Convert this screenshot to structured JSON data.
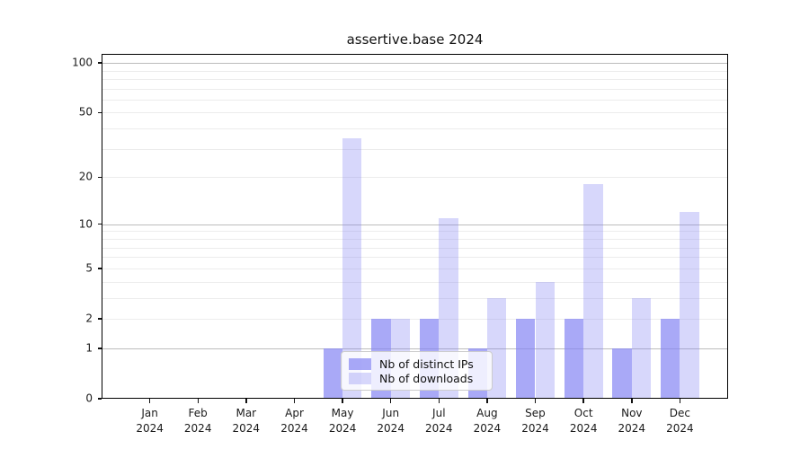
{
  "title": "assertive.base 2024",
  "chart_data": {
    "type": "bar",
    "title": "assertive.base 2024",
    "x_months": [
      "Jan",
      "Feb",
      "Mar",
      "Apr",
      "May",
      "Jun",
      "Jul",
      "Aug",
      "Sep",
      "Oct",
      "Nov",
      "Dec"
    ],
    "x_year": "2024",
    "series": [
      {
        "name": "Nb of distinct IPs",
        "color": "rgba(132,132,244,0.70)",
        "color_hex_on_white": "#a9a9f7",
        "values": [
          0,
          0,
          0,
          0,
          1,
          2,
          2,
          1,
          2,
          2,
          1,
          2
        ]
      },
      {
        "name": "Nb of downloads",
        "color": "rgba(132,132,244,0.32)",
        "color_hex_on_white": "#d8d8f8",
        "values": [
          0,
          0,
          0,
          0,
          35,
          2,
          11,
          3,
          4,
          18,
          3,
          12
        ]
      }
    ],
    "y_ticks": [
      0,
      1,
      2,
      5,
      10,
      20,
      50,
      100
    ],
    "y_scale": "log1p",
    "y_max_log": 2.058,
    "ylim": [
      0,
      113
    ],
    "grid": true,
    "grid_major_values": [
      1,
      10,
      100
    ],
    "grid_minor_values": [
      2,
      3,
      4,
      5,
      6,
      7,
      8,
      9,
      20,
      30,
      40,
      50,
      60,
      70,
      80,
      90
    ],
    "legend_position": "lower center",
    "axis_color": "#000000",
    "grid_major_color": "#bcbcbc",
    "grid_minor_color": "#ececec"
  }
}
